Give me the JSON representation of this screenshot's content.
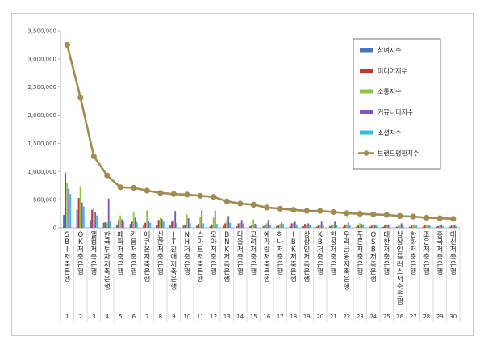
{
  "chart_data": {
    "type": "bar",
    "title": "",
    "xlabel": "",
    "ylabel": "",
    "ylim": [
      0,
      3500000
    ],
    "yticks": [
      "0",
      "500,000",
      "1,000,000",
      "1,500,000",
      "2,000,000",
      "2,500,000",
      "3,000,000",
      "3,500,000"
    ],
    "ytick_values": [
      0,
      500000,
      1000000,
      1500000,
      2000000,
      2500000,
      3000000,
      3500000
    ],
    "grid": false,
    "legend_position": "top-right",
    "indices": [
      "1",
      "2",
      "3",
      "4",
      "5",
      "6",
      "7",
      "8",
      "9",
      "10",
      "11",
      "12",
      "13",
      "14",
      "15",
      "16",
      "17",
      "18",
      "19",
      "20",
      "21",
      "22",
      "23",
      "24",
      "25",
      "26",
      "27",
      "28",
      "29",
      "30"
    ],
    "categories": [
      "SBI저축은행",
      "OK저축은행",
      "웰컴저축은행",
      "한국투자저축은행",
      "페퍼저축은행",
      "키움저축은행",
      "애큐온저축은행",
      "신한저축은행",
      "JT친애저축은행",
      "NH저축은행",
      "스마트저축은행",
      "모아저축은행",
      "BNK저축은행",
      "다올저축은행",
      "고려저축은행",
      "예가람저축은행",
      "하나저축은행",
      "IBK저축은행",
      "상상인저축은행",
      "KB저축은행",
      "한성저축은행",
      "우리금융저축은행",
      "푸른저축은행",
      "OSB저축은행",
      "대한저축은행",
      "상상인플러스저축은행",
      "한화저축은행",
      "조은저축은행",
      "흥국저축은행",
      "대신저축은행"
    ],
    "series": [
      {
        "name": "참여지수",
        "color": "#4472c4",
        "values": [
          230000,
          320000,
          140000,
          90000,
          60000,
          70000,
          40000,
          50000,
          40000,
          40000,
          40000,
          30000,
          40000,
          30000,
          30000,
          30000,
          30000,
          30000,
          30000,
          20000,
          30000,
          20000,
          20000,
          20000,
          20000,
          20000,
          20000,
          20000,
          20000,
          20000
        ]
      },
      {
        "name": "미디어지수",
        "color": "#c0392b",
        "values": [
          980000,
          530000,
          320000,
          100000,
          140000,
          110000,
          90000,
          140000,
          110000,
          60000,
          70000,
          60000,
          80000,
          80000,
          50000,
          60000,
          40000,
          80000,
          70000,
          40000,
          50000,
          50000,
          40000,
          40000,
          50000,
          30000,
          40000,
          50000,
          30000,
          40000
        ]
      },
      {
        "name": "소통지수",
        "color": "#8dc63f",
        "values": [
          790000,
          740000,
          360000,
          90000,
          220000,
          270000,
          310000,
          180000,
          140000,
          240000,
          190000,
          180000,
          130000,
          90000,
          150000,
          80000,
          70000,
          90000,
          50000,
          60000,
          60000,
          60000,
          80000,
          50000,
          60000,
          40000,
          60000,
          40000,
          50000,
          40000
        ]
      },
      {
        "name": "커뮤니티지수",
        "color": "#7e57c2",
        "values": [
          690000,
          450000,
          280000,
          520000,
          150000,
          180000,
          130000,
          160000,
          300000,
          170000,
          310000,
          310000,
          210000,
          140000,
          70000,
          140000,
          100000,
          110000,
          80000,
          110000,
          110000,
          100000,
          70000,
          60000,
          60000,
          80000,
          60000,
          60000,
          60000,
          50000
        ]
      },
      {
        "name": "소셜지수",
        "color": "#33bcd6",
        "values": [
          600000,
          380000,
          220000,
          120000,
          110000,
          100000,
          90000,
          110000,
          90000,
          80000,
          80000,
          70000,
          90000,
          80000,
          60000,
          60000,
          70000,
          60000,
          60000,
          50000,
          50000,
          50000,
          60000,
          40000,
          40000,
          40000,
          40000,
          40000,
          30000,
          30000
        ]
      },
      {
        "name": "브랜드평판지수",
        "color": "#a08c52",
        "type": "line",
        "values": [
          3250000,
          2310000,
          1270000,
          930000,
          720000,
          710000,
          660000,
          620000,
          600000,
          590000,
          570000,
          550000,
          470000,
          430000,
          410000,
          360000,
          340000,
          320000,
          300000,
          300000,
          280000,
          260000,
          250000,
          240000,
          230000,
          210000,
          200000,
          180000,
          170000,
          160000
        ]
      }
    ]
  }
}
